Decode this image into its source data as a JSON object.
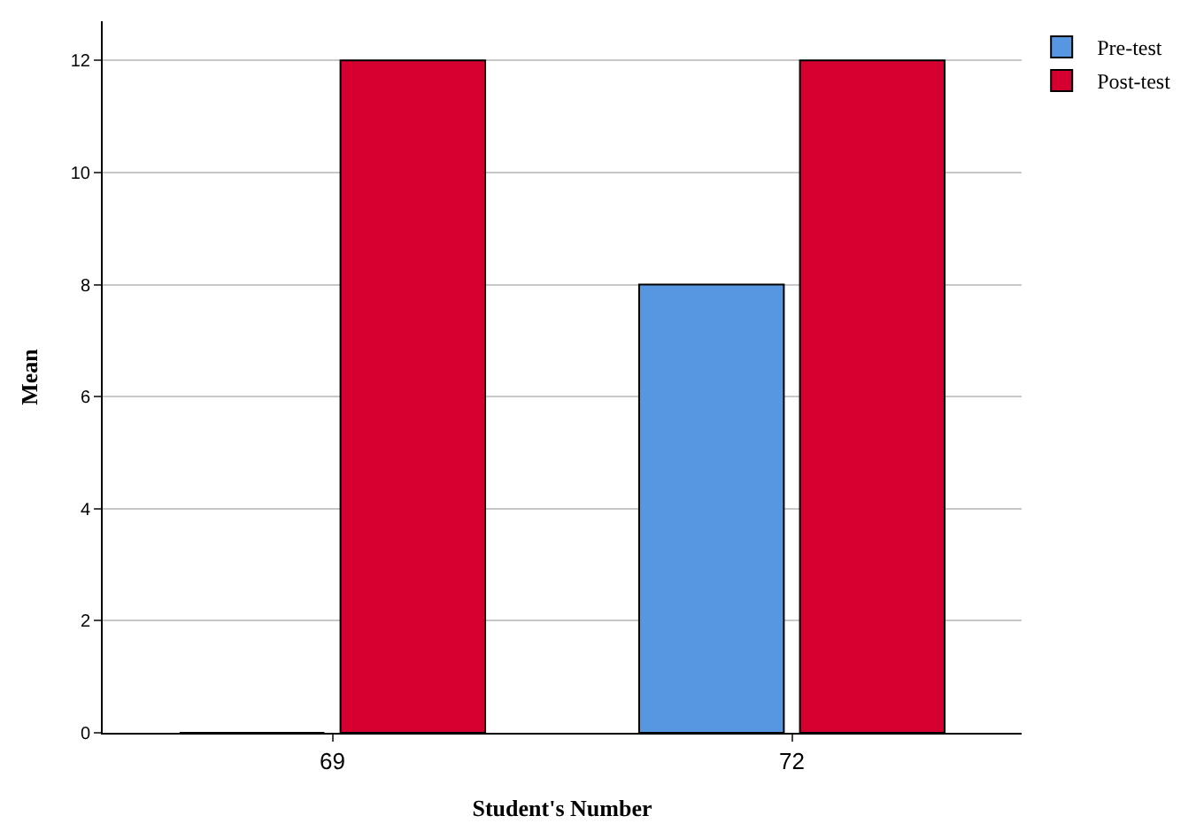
{
  "chart_data": {
    "type": "bar",
    "xlabel": "Student's Number",
    "ylabel": "Mean",
    "categories": [
      "69",
      "72"
    ],
    "series": [
      {
        "name": "Pre-test",
        "color": "#5797e2",
        "values": [
          0,
          8
        ]
      },
      {
        "name": "Post-test",
        "color": "#d5002f",
        "values": [
          12,
          12
        ]
      }
    ],
    "ylim": [
      0,
      12.7
    ],
    "yticks": [
      0,
      2,
      4,
      6,
      8,
      10,
      12
    ],
    "grid": "y",
    "legend": "top right"
  }
}
